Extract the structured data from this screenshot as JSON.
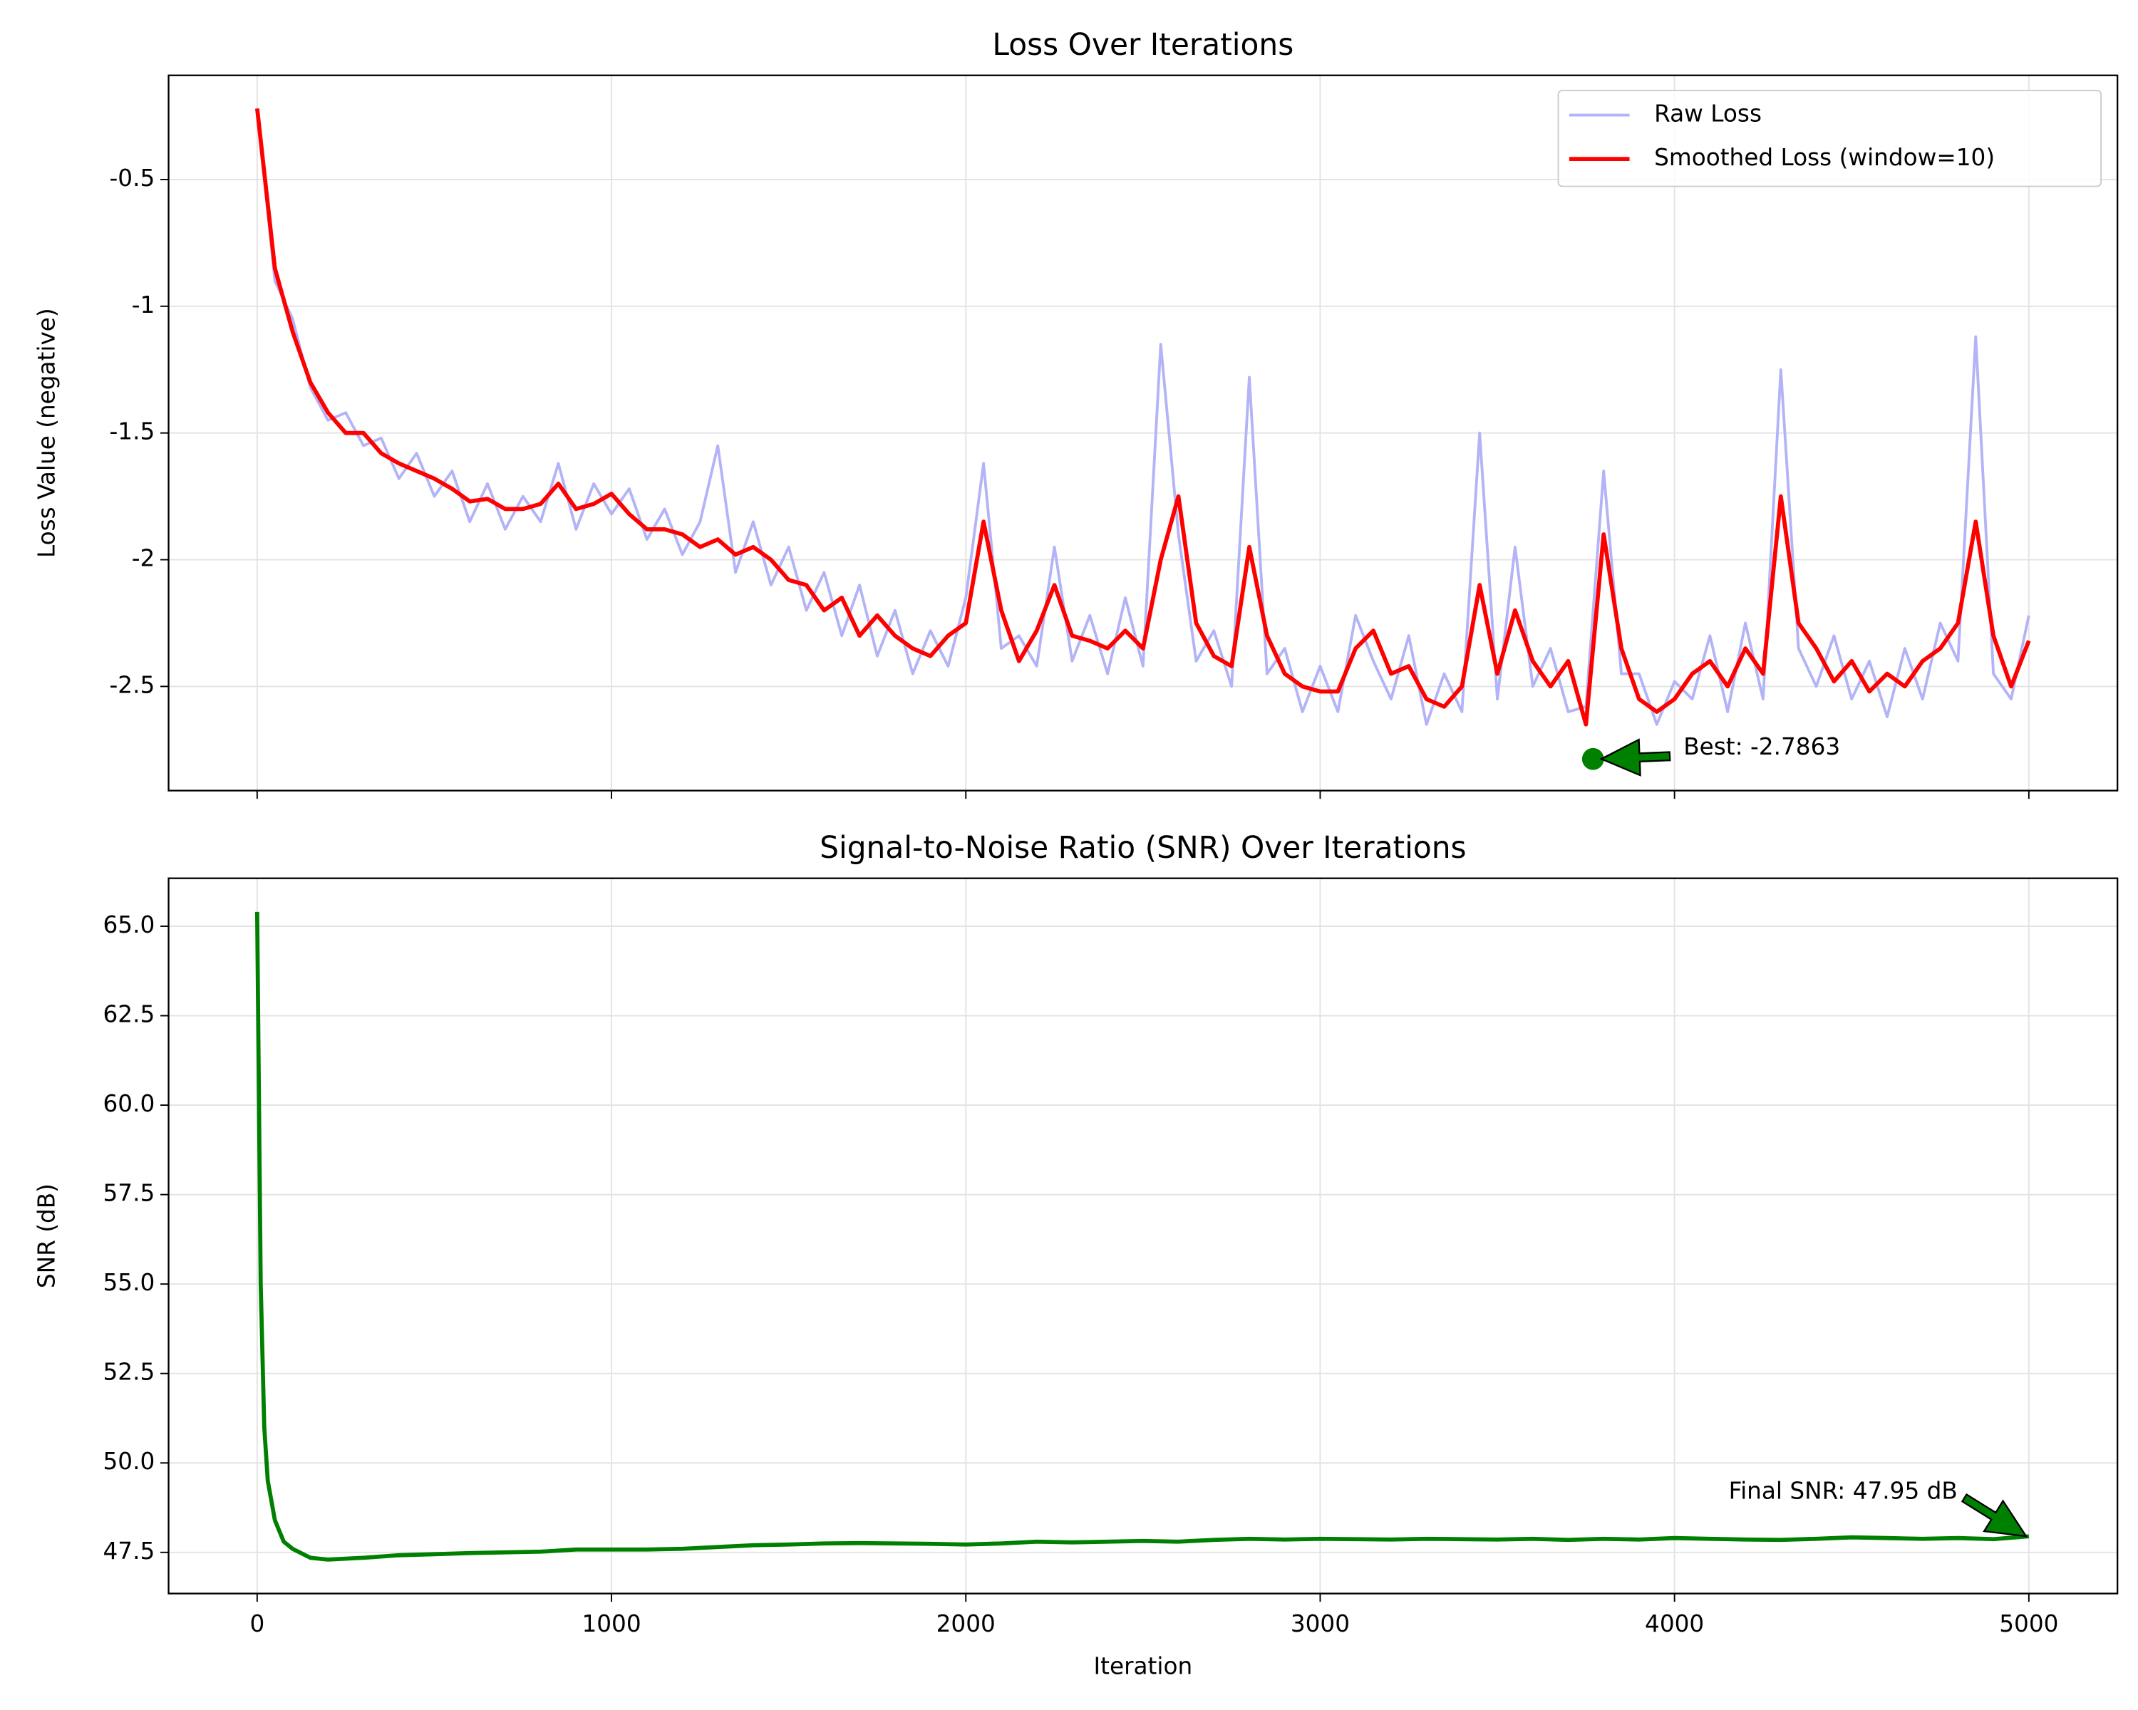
{
  "chart_data": [
    {
      "type": "line",
      "title": "Loss Over Iterations",
      "ylabel": "Loss Value (negative)",
      "x": [
        0,
        50,
        100,
        150,
        200,
        250,
        300,
        350,
        400,
        450,
        500,
        550,
        600,
        650,
        700,
        750,
        800,
        850,
        900,
        950,
        1000,
        1050,
        1100,
        1150,
        1200,
        1250,
        1300,
        1350,
        1400,
        1450,
        1500,
        1550,
        1600,
        1650,
        1700,
        1750,
        1800,
        1850,
        1900,
        1950,
        2000,
        2050,
        2100,
        2150,
        2200,
        2250,
        2300,
        2350,
        2400,
        2450,
        2500,
        2550,
        2600,
        2650,
        2700,
        2750,
        2800,
        2850,
        2900,
        2950,
        3000,
        3050,
        3100,
        3150,
        3200,
        3250,
        3300,
        3350,
        3400,
        3450,
        3500,
        3550,
        3600,
        3650,
        3700,
        3750,
        3800,
        3850,
        3900,
        3950,
        4000,
        4050,
        4100,
        4150,
        4200,
        4250,
        4300,
        4350,
        4400,
        4450,
        4500,
        4550,
        4600,
        4650,
        4700,
        4750,
        4800,
        4850,
        4900,
        4950,
        5000
      ],
      "series": [
        {
          "name": "Raw Loss",
          "color": "#b3b3f7",
          "width": 2,
          "values": [
            -0.22,
            -0.9,
            -1.05,
            -1.32,
            -1.45,
            -1.42,
            -1.55,
            -1.52,
            -1.68,
            -1.58,
            -1.75,
            -1.65,
            -1.85,
            -1.7,
            -1.88,
            -1.75,
            -1.85,
            -1.62,
            -1.88,
            -1.7,
            -1.82,
            -1.72,
            -1.92,
            -1.8,
            -1.98,
            -1.85,
            -1.55,
            -2.05,
            -1.85,
            -2.1,
            -1.95,
            -2.2,
            -2.05,
            -2.3,
            -2.1,
            -2.38,
            -2.2,
            -2.45,
            -2.28,
            -2.42,
            -2.15,
            -1.62,
            -2.35,
            -2.3,
            -2.42,
            -1.95,
            -2.4,
            -2.22,
            -2.45,
            -2.15,
            -2.42,
            -1.15,
            -1.9,
            -2.4,
            -2.28,
            -2.5,
            -1.28,
            -2.45,
            -2.35,
            -2.6,
            -2.42,
            -2.6,
            -2.22,
            -2.4,
            -2.55,
            -2.3,
            -2.65,
            -2.45,
            -2.6,
            -1.5,
            -2.55,
            -1.95,
            -2.5,
            -2.35,
            -2.6,
            -2.58,
            -1.65,
            -2.45,
            -2.45,
            -2.65,
            -2.48,
            -2.55,
            -2.3,
            -2.6,
            -2.25,
            -2.55,
            -1.25,
            -2.35,
            -2.5,
            -2.3,
            -2.55,
            -2.4,
            -2.62,
            -2.35,
            -2.55,
            -2.25,
            -2.4,
            -1.12,
            -2.45,
            -2.55,
            -2.22
          ]
        },
        {
          "name": "Smoothed Loss (window=10)",
          "color": "#ff0000",
          "width": 3,
          "values": [
            -0.22,
            -0.85,
            -1.1,
            -1.3,
            -1.42,
            -1.5,
            -1.5,
            -1.58,
            -1.62,
            -1.65,
            -1.68,
            -1.72,
            -1.77,
            -1.76,
            -1.8,
            -1.8,
            -1.78,
            -1.7,
            -1.8,
            -1.78,
            -1.74,
            -1.82,
            -1.88,
            -1.88,
            -1.9,
            -1.95,
            -1.92,
            -1.98,
            -1.95,
            -2.0,
            -2.08,
            -2.1,
            -2.2,
            -2.15,
            -2.3,
            -2.22,
            -2.3,
            -2.35,
            -2.38,
            -2.3,
            -2.25,
            -1.85,
            -2.2,
            -2.4,
            -2.28,
            -2.1,
            -2.3,
            -2.32,
            -2.35,
            -2.28,
            -2.35,
            -2.0,
            -1.75,
            -2.25,
            -2.38,
            -2.42,
            -1.95,
            -2.3,
            -2.45,
            -2.5,
            -2.52,
            -2.52,
            -2.35,
            -2.28,
            -2.45,
            -2.42,
            -2.55,
            -2.58,
            -2.5,
            -2.1,
            -2.45,
            -2.2,
            -2.4,
            -2.5,
            -2.4,
            -2.65,
            -1.9,
            -2.35,
            -2.55,
            -2.6,
            -2.55,
            -2.45,
            -2.4,
            -2.5,
            -2.35,
            -2.45,
            -1.75,
            -2.25,
            -2.35,
            -2.48,
            -2.4,
            -2.52,
            -2.45,
            -2.5,
            -2.4,
            -2.35,
            -2.25,
            -1.85,
            -2.3,
            -2.5,
            -2.32
          ]
        }
      ],
      "xlim": [
        -250,
        5250
      ],
      "xticks": [
        0,
        1000,
        2000,
        3000,
        4000,
        5000
      ],
      "xtick_labels": false,
      "ylim": [
        -2.911,
        -0.089
      ],
      "yticks": [
        -0.5,
        -1.0,
        -1.5,
        -2.0,
        -2.5
      ],
      "grid": true,
      "legend": "upper right",
      "annotations": [
        {
          "text": "Best: -2.7863",
          "x": 3770,
          "y": -2.7863,
          "color": "#008000"
        }
      ]
    },
    {
      "type": "line",
      "title": "Signal-to-Noise Ratio (SNR) Over Iterations",
      "xlabel": "Iteration",
      "ylabel": "SNR (dB)",
      "x": [
        0,
        10,
        20,
        30,
        50,
        75,
        100,
        150,
        200,
        300,
        400,
        500,
        600,
        700,
        800,
        900,
        1000,
        1100,
        1200,
        1300,
        1400,
        1500,
        1600,
        1700,
        1800,
        1900,
        2000,
        2100,
        2200,
        2300,
        2400,
        2500,
        2600,
        2700,
        2800,
        2900,
        3000,
        3100,
        3200,
        3300,
        3400,
        3500,
        3600,
        3700,
        3800,
        3900,
        4000,
        4100,
        4200,
        4300,
        4400,
        4500,
        4600,
        4700,
        4800,
        4900,
        5000
      ],
      "series": [
        {
          "name": "SNR",
          "color": "#008000",
          "width": 3,
          "values": [
            65.4,
            55.0,
            51.0,
            49.5,
            48.4,
            47.8,
            47.6,
            47.35,
            47.3,
            47.35,
            47.42,
            47.45,
            47.48,
            47.5,
            47.52,
            47.58,
            47.58,
            47.58,
            47.6,
            47.65,
            47.7,
            47.72,
            47.75,
            47.76,
            47.75,
            47.74,
            47.72,
            47.75,
            47.8,
            47.78,
            47.8,
            47.82,
            47.8,
            47.85,
            47.88,
            47.86,
            47.88,
            47.87,
            47.86,
            47.88,
            47.87,
            47.86,
            47.88,
            47.85,
            47.88,
            47.86,
            47.9,
            47.88,
            47.86,
            47.85,
            47.88,
            47.92,
            47.9,
            47.88,
            47.9,
            47.87,
            47.95
          ]
        }
      ],
      "xlim": [
        -250,
        5250
      ],
      "xticks": [
        0,
        1000,
        2000,
        3000,
        4000,
        5000
      ],
      "ylim": [
        46.35,
        66.34
      ],
      "yticks": [
        {
          "value": 47.5,
          "label": "47.5"
        },
        {
          "value": 50,
          "label": "50.0"
        },
        {
          "value": 52.5,
          "label": "52.5"
        },
        {
          "value": 55,
          "label": "55.0"
        },
        {
          "value": 57.5,
          "label": "57.5"
        },
        {
          "value": 60,
          "label": "60.0"
        },
        {
          "value": 62.5,
          "label": "62.5"
        },
        {
          "value": 65,
          "label": "65.0"
        }
      ],
      "grid": true,
      "annotations": [
        {
          "text": "Final SNR: 47.95 dB",
          "x": 5000,
          "y": 47.95,
          "color": "#008000"
        }
      ]
    }
  ]
}
